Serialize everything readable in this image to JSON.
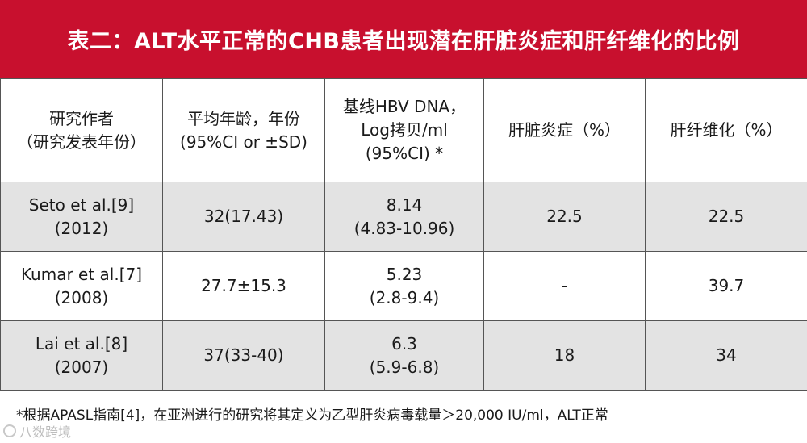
{
  "title": "表二：ALT水平正常的CHB患者出现潜在肝脏炎症和肝纤维化的比例",
  "table": {
    "headers": [
      "研究作者\n（研究发表年份）",
      "平均年龄，年份\n(95%CI or ±SD)",
      "基线HBV DNA，\nLog拷贝/ml\n(95%CI) *",
      "肝脏炎症（%）",
      "肝纤维化（%）"
    ],
    "rows": [
      {
        "study": "Seto et al.[9]\n(2012)",
        "age": "32(17.43)",
        "hbv_dna": "8.14\n(4.83-10.96)",
        "inflammation": "22.5",
        "fibrosis": "22.5"
      },
      {
        "study": "Kumar et al.[7]\n(2008)",
        "age": "27.7±15.3",
        "hbv_dna": "5.23\n(2.8-9.4)",
        "inflammation": "-",
        "fibrosis": "39.7"
      },
      {
        "study": "Lai et al.[8]\n(2007)",
        "age": "37(33-40)",
        "hbv_dna": "6.3\n(5.9-6.8)",
        "inflammation": "18",
        "fibrosis": "34"
      }
    ]
  },
  "footnote": "*根据APASL指南[4]，在亚洲进行的研究将其定义为乙型肝炎病毒载量＞20,000 IU/ml，ALT正常",
  "watermark": "八数跨境",
  "colors": {
    "title_bg": "#c8102e",
    "row_shade": "#e3e3e3"
  }
}
